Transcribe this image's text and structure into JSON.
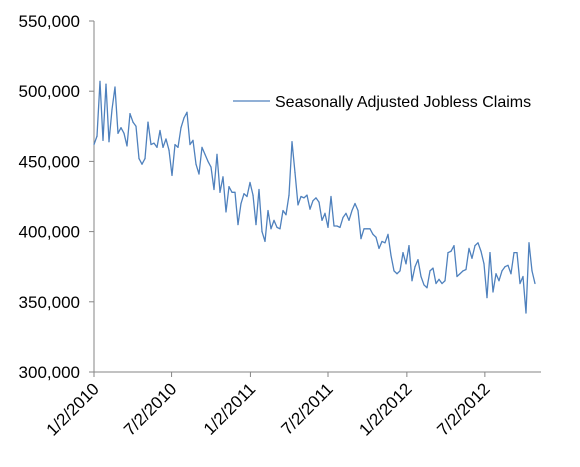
{
  "chart_data": {
    "type": "line",
    "title": "",
    "xlabel": "",
    "ylabel": "",
    "ylim": [
      300000,
      550000
    ],
    "yticks": [
      300000,
      350000,
      400000,
      450000,
      500000,
      550000
    ],
    "ytick_labels": [
      "300,000",
      "350,000",
      "400,000",
      "450,000",
      "500,000",
      "550,000"
    ],
    "xlim": [
      "2010-01-02",
      "2012-11-10"
    ],
    "xtick_dates": [
      "2010-01-02",
      "2010-07-02",
      "2011-01-02",
      "2011-07-02",
      "2012-01-02",
      "2012-07-02"
    ],
    "xtick_labels": [
      "1/2/2010",
      "7/2/2010",
      "1/2/2011",
      "7/2/2011",
      "1/2/2012",
      "7/2/2012"
    ],
    "grid": false,
    "legend_position": "top-right",
    "line_color": "#4f81bd",
    "series": [
      {
        "name": "Seasonally Adjusted Jobless Claims",
        "start_date": "2010-01-02",
        "interval_days": 7,
        "values": [
          462000,
          468000,
          507000,
          465000,
          505000,
          464000,
          487000,
          503000,
          470000,
          474000,
          470000,
          461000,
          484000,
          478000,
          475000,
          452000,
          448000,
          452000,
          478000,
          462000,
          463000,
          460000,
          472000,
          460000,
          466000,
          458000,
          440000,
          462000,
          460000,
          474000,
          481000,
          485000,
          462000,
          465000,
          448000,
          441000,
          460000,
          455000,
          450000,
          446000,
          430000,
          455000,
          428000,
          439000,
          414000,
          432000,
          428000,
          428000,
          405000,
          420000,
          427000,
          425000,
          435000,
          426000,
          405000,
          430000,
          400000,
          393000,
          415000,
          402000,
          408000,
          403000,
          402000,
          415000,
          412000,
          426000,
          464000,
          442000,
          419000,
          425000,
          424000,
          426000,
          416000,
          422000,
          424000,
          421000,
          408000,
          413000,
          403000,
          425000,
          404000,
          404000,
          403000,
          410000,
          413000,
          408000,
          415000,
          420000,
          415000,
          395000,
          402000,
          402000,
          402000,
          398000,
          396000,
          388000,
          393000,
          392000,
          398000,
          383000,
          372000,
          370000,
          372000,
          385000,
          377000,
          390000,
          365000,
          375000,
          380000,
          368000,
          362000,
          360000,
          372000,
          374000,
          363000,
          366000,
          363000,
          365000,
          385000,
          386000,
          390000,
          368000,
          370000,
          372000,
          373000,
          388000,
          381000,
          390000,
          392000,
          386000,
          377000,
          353000,
          385000,
          357000,
          370000,
          365000,
          372000,
          375000,
          376000,
          370000,
          385000,
          385000,
          363000,
          368000,
          342000,
          392000,
          372000,
          363000
        ]
      }
    ]
  }
}
